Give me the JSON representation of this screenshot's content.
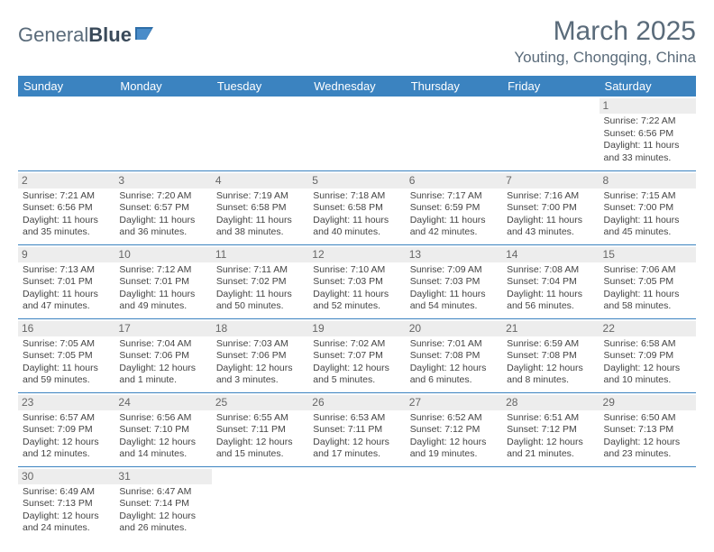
{
  "logo": {
    "text1": "General",
    "text2": "Blue"
  },
  "title": "March 2025",
  "location": "Youting, Chongqing, China",
  "weekdays": [
    "Sunday",
    "Monday",
    "Tuesday",
    "Wednesday",
    "Thursday",
    "Friday",
    "Saturday"
  ],
  "header_bg": "#3b83c0",
  "daynum_bg": "#ededed",
  "weeks": [
    [
      null,
      null,
      null,
      null,
      null,
      null,
      {
        "n": "1",
        "sr": "7:22 AM",
        "ss": "6:56 PM",
        "dl": "11 hours and 33 minutes."
      }
    ],
    [
      {
        "n": "2",
        "sr": "7:21 AM",
        "ss": "6:56 PM",
        "dl": "11 hours and 35 minutes."
      },
      {
        "n": "3",
        "sr": "7:20 AM",
        "ss": "6:57 PM",
        "dl": "11 hours and 36 minutes."
      },
      {
        "n": "4",
        "sr": "7:19 AM",
        "ss": "6:58 PM",
        "dl": "11 hours and 38 minutes."
      },
      {
        "n": "5",
        "sr": "7:18 AM",
        "ss": "6:58 PM",
        "dl": "11 hours and 40 minutes."
      },
      {
        "n": "6",
        "sr": "7:17 AM",
        "ss": "6:59 PM",
        "dl": "11 hours and 42 minutes."
      },
      {
        "n": "7",
        "sr": "7:16 AM",
        "ss": "7:00 PM",
        "dl": "11 hours and 43 minutes."
      },
      {
        "n": "8",
        "sr": "7:15 AM",
        "ss": "7:00 PM",
        "dl": "11 hours and 45 minutes."
      }
    ],
    [
      {
        "n": "9",
        "sr": "7:13 AM",
        "ss": "7:01 PM",
        "dl": "11 hours and 47 minutes."
      },
      {
        "n": "10",
        "sr": "7:12 AM",
        "ss": "7:01 PM",
        "dl": "11 hours and 49 minutes."
      },
      {
        "n": "11",
        "sr": "7:11 AM",
        "ss": "7:02 PM",
        "dl": "11 hours and 50 minutes."
      },
      {
        "n": "12",
        "sr": "7:10 AM",
        "ss": "7:03 PM",
        "dl": "11 hours and 52 minutes."
      },
      {
        "n": "13",
        "sr": "7:09 AM",
        "ss": "7:03 PM",
        "dl": "11 hours and 54 minutes."
      },
      {
        "n": "14",
        "sr": "7:08 AM",
        "ss": "7:04 PM",
        "dl": "11 hours and 56 minutes."
      },
      {
        "n": "15",
        "sr": "7:06 AM",
        "ss": "7:05 PM",
        "dl": "11 hours and 58 minutes."
      }
    ],
    [
      {
        "n": "16",
        "sr": "7:05 AM",
        "ss": "7:05 PM",
        "dl": "11 hours and 59 minutes."
      },
      {
        "n": "17",
        "sr": "7:04 AM",
        "ss": "7:06 PM",
        "dl": "12 hours and 1 minute."
      },
      {
        "n": "18",
        "sr": "7:03 AM",
        "ss": "7:06 PM",
        "dl": "12 hours and 3 minutes."
      },
      {
        "n": "19",
        "sr": "7:02 AM",
        "ss": "7:07 PM",
        "dl": "12 hours and 5 minutes."
      },
      {
        "n": "20",
        "sr": "7:01 AM",
        "ss": "7:08 PM",
        "dl": "12 hours and 6 minutes."
      },
      {
        "n": "21",
        "sr": "6:59 AM",
        "ss": "7:08 PM",
        "dl": "12 hours and 8 minutes."
      },
      {
        "n": "22",
        "sr": "6:58 AM",
        "ss": "7:09 PM",
        "dl": "12 hours and 10 minutes."
      }
    ],
    [
      {
        "n": "23",
        "sr": "6:57 AM",
        "ss": "7:09 PM",
        "dl": "12 hours and 12 minutes."
      },
      {
        "n": "24",
        "sr": "6:56 AM",
        "ss": "7:10 PM",
        "dl": "12 hours and 14 minutes."
      },
      {
        "n": "25",
        "sr": "6:55 AM",
        "ss": "7:11 PM",
        "dl": "12 hours and 15 minutes."
      },
      {
        "n": "26",
        "sr": "6:53 AM",
        "ss": "7:11 PM",
        "dl": "12 hours and 17 minutes."
      },
      {
        "n": "27",
        "sr": "6:52 AM",
        "ss": "7:12 PM",
        "dl": "12 hours and 19 minutes."
      },
      {
        "n": "28",
        "sr": "6:51 AM",
        "ss": "7:12 PM",
        "dl": "12 hours and 21 minutes."
      },
      {
        "n": "29",
        "sr": "6:50 AM",
        "ss": "7:13 PM",
        "dl": "12 hours and 23 minutes."
      }
    ],
    [
      {
        "n": "30",
        "sr": "6:49 AM",
        "ss": "7:13 PM",
        "dl": "12 hours and 24 minutes."
      },
      {
        "n": "31",
        "sr": "6:47 AM",
        "ss": "7:14 PM",
        "dl": "12 hours and 26 minutes."
      },
      null,
      null,
      null,
      null,
      null
    ]
  ],
  "labels": {
    "sunrise": "Sunrise: ",
    "sunset": "Sunset: ",
    "daylight": "Daylight: "
  }
}
